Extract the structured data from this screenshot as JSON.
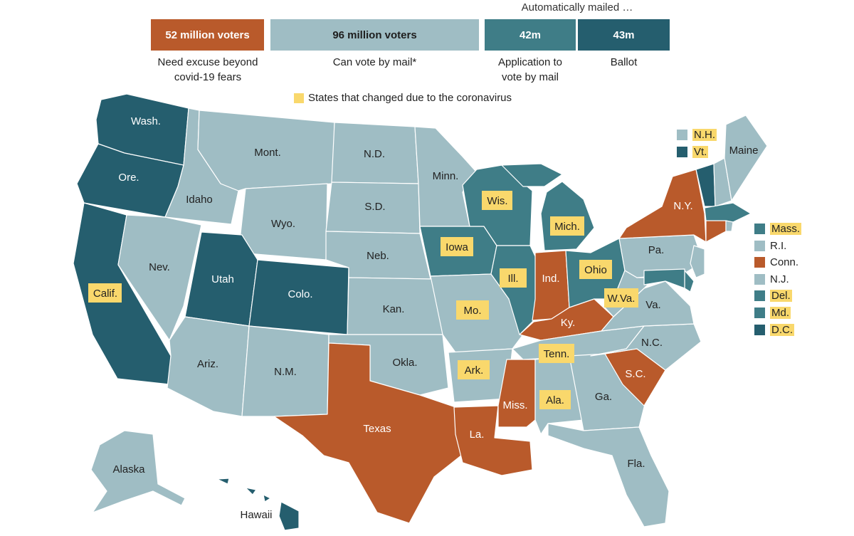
{
  "legend": {
    "auto_header": "Automatically mailed …",
    "bars": [
      {
        "value": "52 million voters",
        "caption": "Need excuse beyond\ncovid-19 fears",
        "color": "#b95a2b",
        "text_color": "#ffffff"
      },
      {
        "value": "96 million voters",
        "caption": "Can vote by mail*",
        "color": "#9fbdc4",
        "text_color": "#1e1e1e"
      },
      {
        "value": "42m",
        "caption": "Application to\nvote by mail",
        "color": "#3f7d87",
        "text_color": "#ffffff"
      },
      {
        "value": "43m",
        "caption": "Ballot",
        "color": "#255e6e",
        "text_color": "#ffffff"
      }
    ],
    "changed_note": "States that changed due to the coronavirus"
  },
  "colors": {
    "excuse": "#b95a2b",
    "can_mail": "#9fbdc4",
    "application": "#3f7d87",
    "ballot": "#255e6e",
    "changed": "#f9d86c"
  },
  "states": {
    "wash": "Wash.",
    "ore": "Ore.",
    "calif": "Calif.",
    "idaho": "Idaho",
    "nev": "Nev.",
    "mont": "Mont.",
    "wyo": "Wyo.",
    "utah": "Utah",
    "colo": "Colo.",
    "ariz": "Ariz.",
    "nm": "N.M.",
    "nd": "N.D.",
    "sd": "S.D.",
    "neb": "Neb.",
    "kan": "Kan.",
    "okla": "Okla.",
    "texas": "Texas",
    "minn": "Minn.",
    "iowa": "Iowa",
    "mo": "Mo.",
    "ark": "Ark.",
    "la": "La.",
    "wis": "Wis.",
    "ill": "Ill.",
    "mich": "Mich.",
    "ind": "Ind.",
    "ohio": "Ohio",
    "ky": "Ky.",
    "tenn": "Tenn.",
    "miss": "Miss.",
    "ala": "Ala.",
    "ga": "Ga.",
    "fla": "Fla.",
    "sc": "S.C.",
    "nc": "N.C.",
    "va": "Va.",
    "wva": "W.Va.",
    "pa": "Pa.",
    "ny": "N.Y.",
    "maine": "Maine",
    "alaska": "Alaska",
    "hawaii": "Hawaii"
  },
  "side_states": [
    {
      "name": "N.H.",
      "category": "can_mail",
      "changed": true
    },
    {
      "name": "Vt.",
      "category": "ballot",
      "changed": true
    },
    {
      "name": "Mass.",
      "category": "application",
      "changed": true
    },
    {
      "name": "R.I.",
      "category": "can_mail",
      "changed": false
    },
    {
      "name": "Conn.",
      "category": "excuse",
      "changed": false
    },
    {
      "name": "N.J.",
      "category": "can_mail",
      "changed": false
    },
    {
      "name": "Del.",
      "category": "application",
      "changed": true
    },
    {
      "name": "Md.",
      "category": "application",
      "changed": true
    },
    {
      "name": "D.C.",
      "category": "ballot",
      "changed": true
    }
  ]
}
